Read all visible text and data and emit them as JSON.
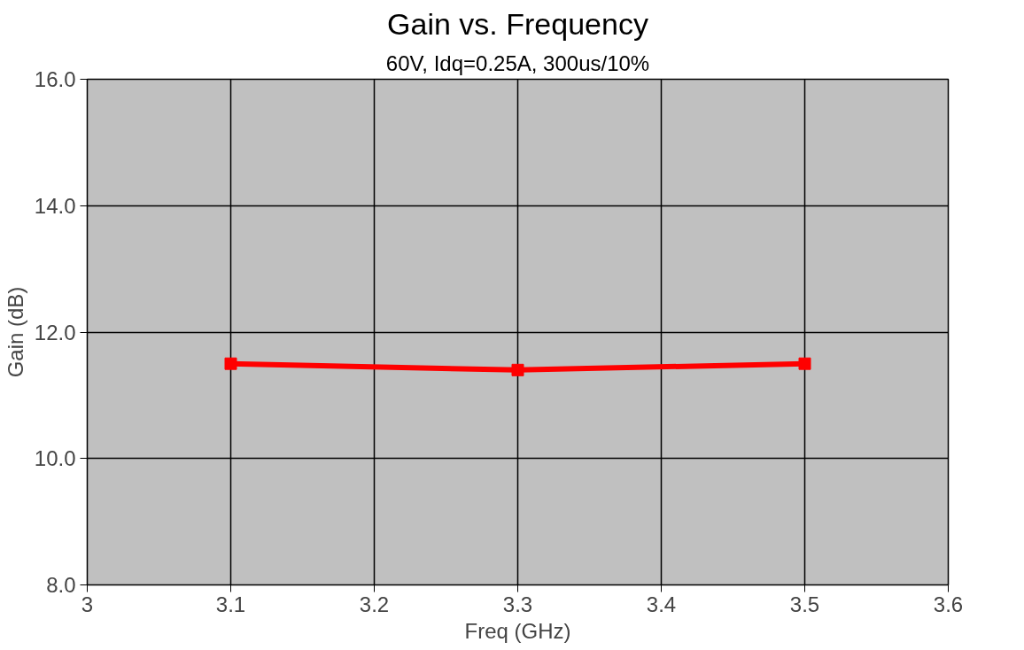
{
  "chart_data": {
    "type": "line",
    "title": "Gain vs. Frequency",
    "subtitle": "60V, Idq=0.25A, 300us/10%",
    "xlabel": "Freq (GHz)",
    "ylabel": "Gain (dB)",
    "x": [
      3.1,
      3.3,
      3.5
    ],
    "series": [
      {
        "color": "#ff0000",
        "values": [
          11.5,
          11.4,
          11.5
        ]
      }
    ],
    "xlim": [
      3,
      3.6
    ],
    "xticks": [
      3,
      3.1,
      3.2,
      3.3,
      3.4,
      3.5,
      3.6
    ],
    "ylim": [
      8,
      16
    ],
    "yticks": [
      {
        "value": 8,
        "label": "8.0"
      },
      {
        "value": 10,
        "label": "10.0"
      },
      {
        "value": 12,
        "label": "12.0"
      },
      {
        "value": 14,
        "label": "14.0"
      },
      {
        "value": 16,
        "label": "16.0"
      }
    ],
    "grid": true,
    "marker": "square",
    "line_style": "solid"
  }
}
